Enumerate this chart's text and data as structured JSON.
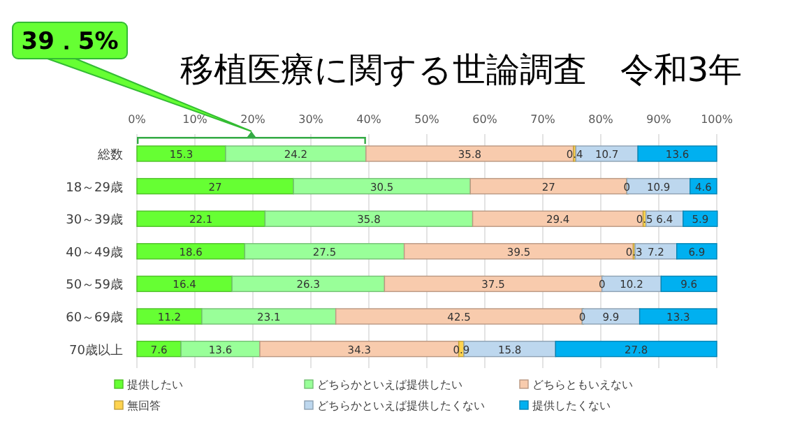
{
  "chart_data": {
    "type": "bar",
    "orientation": "horizontal",
    "stacked": true,
    "title": "移植医療に関する世論調査　令和3年",
    "categories": [
      "総数",
      "18～29歳",
      "30～39歳",
      "40～49歳",
      "50～59歳",
      "60～69歳",
      "70歳以上"
    ],
    "series": [
      {
        "name": "提供したい",
        "color": "#66ff33",
        "values": [
          15.3,
          27,
          22.1,
          18.6,
          16.4,
          11.2,
          7.6
        ]
      },
      {
        "name": "どちらかといえば提供したい",
        "color": "#99ff99",
        "values": [
          24.2,
          30.5,
          35.8,
          27.5,
          26.3,
          23.1,
          13.6
        ]
      },
      {
        "name": "どちらともいえない",
        "color": "#f8cbad",
        "values": [
          35.8,
          27,
          29.4,
          39.5,
          37.5,
          42.5,
          34.3
        ]
      },
      {
        "name": "無回答",
        "color": "#ffd34f",
        "values": [
          0.4,
          0,
          0.5,
          0.3,
          0,
          0,
          0.9
        ]
      },
      {
        "name": "どちらかといえば提供したくない",
        "color": "#bdd7ee",
        "values": [
          10.7,
          10.9,
          6.4,
          7.2,
          10.2,
          9.9,
          15.8
        ]
      },
      {
        "name": "提供したくない",
        "color": "#00b0f0",
        "values": [
          13.6,
          4.6,
          5.9,
          6.9,
          9.6,
          13.3,
          27.8
        ]
      }
    ],
    "xlim": [
      0,
      100
    ],
    "xticks": [
      {
        "value": 0,
        "label": "0%"
      },
      {
        "value": 10,
        "label": "10%"
      },
      {
        "value": 20,
        "label": "20%"
      },
      {
        "value": 30,
        "label": "30%"
      },
      {
        "value": 40,
        "label": "40%"
      },
      {
        "value": 50,
        "label": "50%"
      },
      {
        "value": 60,
        "label": "60%"
      },
      {
        "value": 70,
        "label": "70%"
      },
      {
        "value": 80,
        "label": "80%"
      },
      {
        "value": 90,
        "label": "90%"
      },
      {
        "value": 100,
        "label": "100%"
      }
    ],
    "grid": "x",
    "legend": "bottom",
    "data_labels": true,
    "annotations": [
      "39．5%"
    ]
  }
}
